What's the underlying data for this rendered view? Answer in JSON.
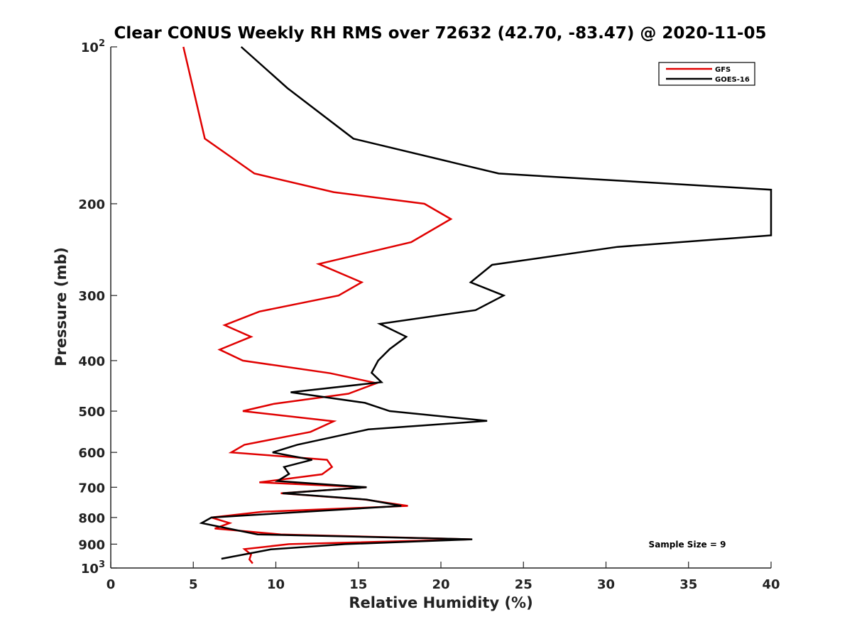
{
  "chart_data": {
    "type": "line",
    "title": "Clear CONUS Weekly RH RMS over 72632 (42.70, -83.47) @ 2020-11-05",
    "xlabel": "Relative Humidity (%)",
    "ylabel": "Pressure (mb)",
    "xlim": [
      0,
      40
    ],
    "ylim": [
      1000,
      100
    ],
    "y_scale": "log",
    "y_reversed": true,
    "x_ticks": [
      0,
      5,
      10,
      15,
      20,
      25,
      30,
      35,
      40
    ],
    "y_ticks": [
      {
        "value": 100,
        "label": "10",
        "sup": "2"
      },
      {
        "value": 200,
        "label": "200",
        "sup": ""
      },
      {
        "value": 300,
        "label": "300",
        "sup": ""
      },
      {
        "value": 400,
        "label": "400",
        "sup": ""
      },
      {
        "value": 500,
        "label": "500",
        "sup": ""
      },
      {
        "value": 600,
        "label": "600",
        "sup": ""
      },
      {
        "value": 700,
        "label": "700",
        "sup": ""
      },
      {
        "value": 800,
        "label": "800",
        "sup": ""
      },
      {
        "value": 900,
        "label": "900",
        "sup": ""
      },
      {
        "value": 1000,
        "label": "10",
        "sup": "3"
      }
    ],
    "grid": false,
    "legend_position": "top-right",
    "annotation": "Sample Size = 9",
    "series": [
      {
        "name": "GFS",
        "color": "#e00000",
        "points": [
          [
            4.4,
            100
          ],
          [
            5.7,
            150
          ],
          [
            8.7,
            175
          ],
          [
            13.5,
            190
          ],
          [
            19.0,
            200
          ],
          [
            20.6,
            214
          ],
          [
            18.2,
            237
          ],
          [
            12.6,
            261
          ],
          [
            15.2,
            283
          ],
          [
            13.8,
            300
          ],
          [
            9.0,
            322
          ],
          [
            6.9,
            342
          ],
          [
            8.5,
            360
          ],
          [
            6.6,
            381
          ],
          [
            8.0,
            400
          ],
          [
            13.3,
            423
          ],
          [
            16.1,
            442
          ],
          [
            14.4,
            463
          ],
          [
            9.9,
            484
          ],
          [
            8.0,
            500
          ],
          [
            13.5,
            523
          ],
          [
            12.1,
            548
          ],
          [
            8.1,
            580
          ],
          [
            7.3,
            600
          ],
          [
            13.1,
            620
          ],
          [
            13.4,
            640
          ],
          [
            12.8,
            661
          ],
          [
            9.0,
            685
          ],
          [
            15.5,
            700
          ],
          [
            10.3,
            719
          ],
          [
            15.4,
            739
          ],
          [
            18.0,
            760
          ],
          [
            9.2,
            780
          ],
          [
            6.1,
            800
          ],
          [
            7.2,
            820
          ],
          [
            6.3,
            840
          ],
          [
            10.3,
            862
          ],
          [
            21.8,
            881
          ],
          [
            10.8,
            900
          ],
          [
            8.1,
            920
          ],
          [
            8.5,
            942
          ],
          [
            8.4,
            963
          ],
          [
            8.6,
            980
          ]
        ]
      },
      {
        "name": "GOES-16",
        "color": "#000000",
        "points": [
          [
            7.9,
            100
          ],
          [
            10.7,
            120
          ],
          [
            14.7,
            150
          ],
          [
            23.5,
            175
          ],
          [
            40.0,
            188
          ],
          [
            40.0,
            230
          ],
          [
            30.7,
            242
          ],
          [
            23.1,
            262
          ],
          [
            21.8,
            283
          ],
          [
            23.8,
            300
          ],
          [
            22.1,
            320
          ],
          [
            16.3,
            340
          ],
          [
            17.9,
            360
          ],
          [
            16.9,
            380
          ],
          [
            16.2,
            400
          ],
          [
            15.8,
            422
          ],
          [
            16.4,
            440
          ],
          [
            10.9,
            460
          ],
          [
            15.4,
            482
          ],
          [
            16.9,
            500
          ],
          [
            22.8,
            522
          ],
          [
            15.6,
            542
          ],
          [
            11.3,
            580
          ],
          [
            9.8,
            600
          ],
          [
            12.2,
            620
          ],
          [
            10.5,
            640
          ],
          [
            10.8,
            660
          ],
          [
            10.1,
            681
          ],
          [
            15.5,
            700
          ],
          [
            10.4,
            719
          ],
          [
            15.5,
            739
          ],
          [
            17.6,
            760
          ],
          [
            6.1,
            800
          ],
          [
            5.5,
            820
          ],
          [
            8.9,
            862
          ],
          [
            21.9,
            881
          ],
          [
            14.2,
            900
          ],
          [
            9.7,
            921
          ],
          [
            6.7,
            960
          ]
        ]
      }
    ]
  }
}
